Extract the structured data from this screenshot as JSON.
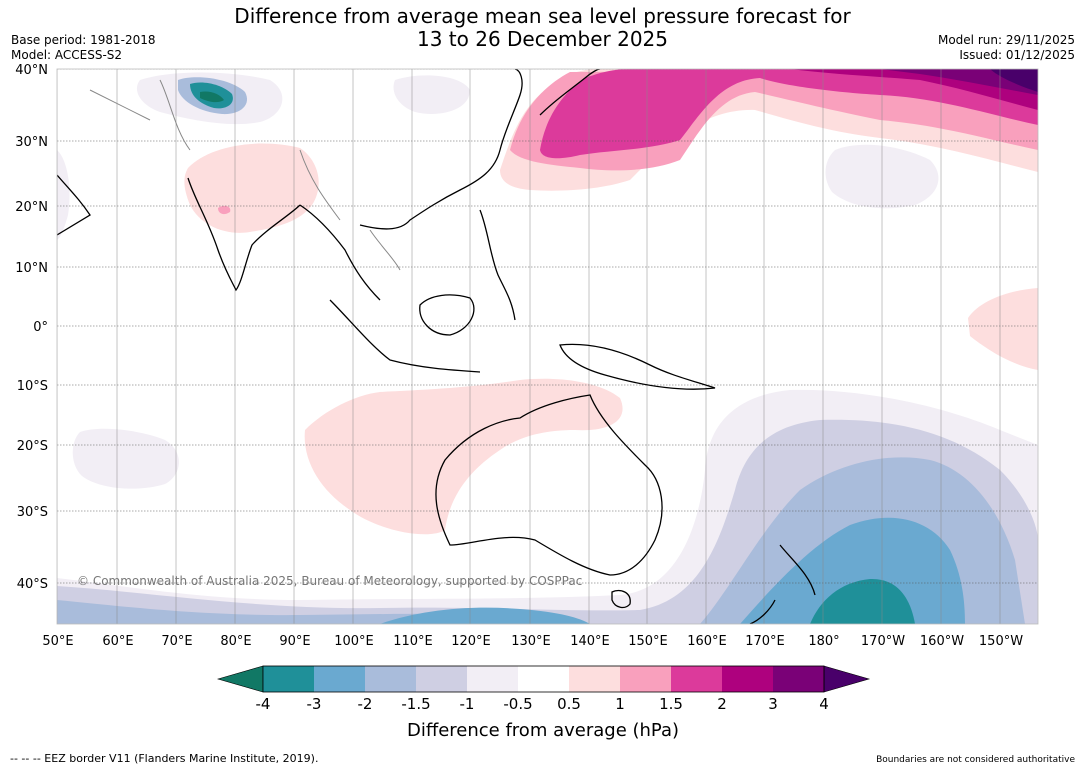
{
  "header": {
    "title_line1": "Difference from average mean sea level pressure forecast for",
    "title_line2": "13 to 26 December 2025",
    "base_period": "Base period: 1981-2018",
    "model": "Model: ACCESS-S2",
    "model_run": "Model run: 29/11/2025",
    "issued": "Issued: 01/12/2025"
  },
  "map": {
    "lat_labels": [
      "40°N",
      "30°N",
      "20°N",
      "10°N",
      "0°",
      "10°S",
      "20°S",
      "30°S",
      "40°S"
    ],
    "lon_labels": [
      "50°E",
      "60°E",
      "70°E",
      "80°E",
      "90°E",
      "100°E",
      "110°E",
      "120°E",
      "130°E",
      "140°E",
      "150°E",
      "160°E",
      "170°E",
      "180°",
      "170°W",
      "160°W",
      "150°W"
    ],
    "copyright": "© Commonwealth of Australia 2025, Bureau of Meteorology, supported by COSPPac"
  },
  "colorbar": {
    "ticks": [
      "-4",
      "-3",
      "-2",
      "-1.5",
      "-1",
      "-0.5",
      "0.5",
      "1",
      "1.5",
      "2",
      "3",
      "4"
    ],
    "colors": [
      "#117865",
      "#1f9099",
      "#6aa9d0",
      "#a9bcdb",
      "#cfcfe3",
      "#f2eef5",
      "#ffffff",
      "#fddede",
      "#f9a0bd",
      "#dc3a9b",
      "#ae017e",
      "#7a0177",
      "#49006a"
    ],
    "title": "Difference from average (hPa)"
  },
  "footer": {
    "eez_note": "--  --  -- EEZ border V11 (Flanders Marine Institute, 2019).",
    "boundaries_note": "Boundaries are not considered authoritative"
  }
}
